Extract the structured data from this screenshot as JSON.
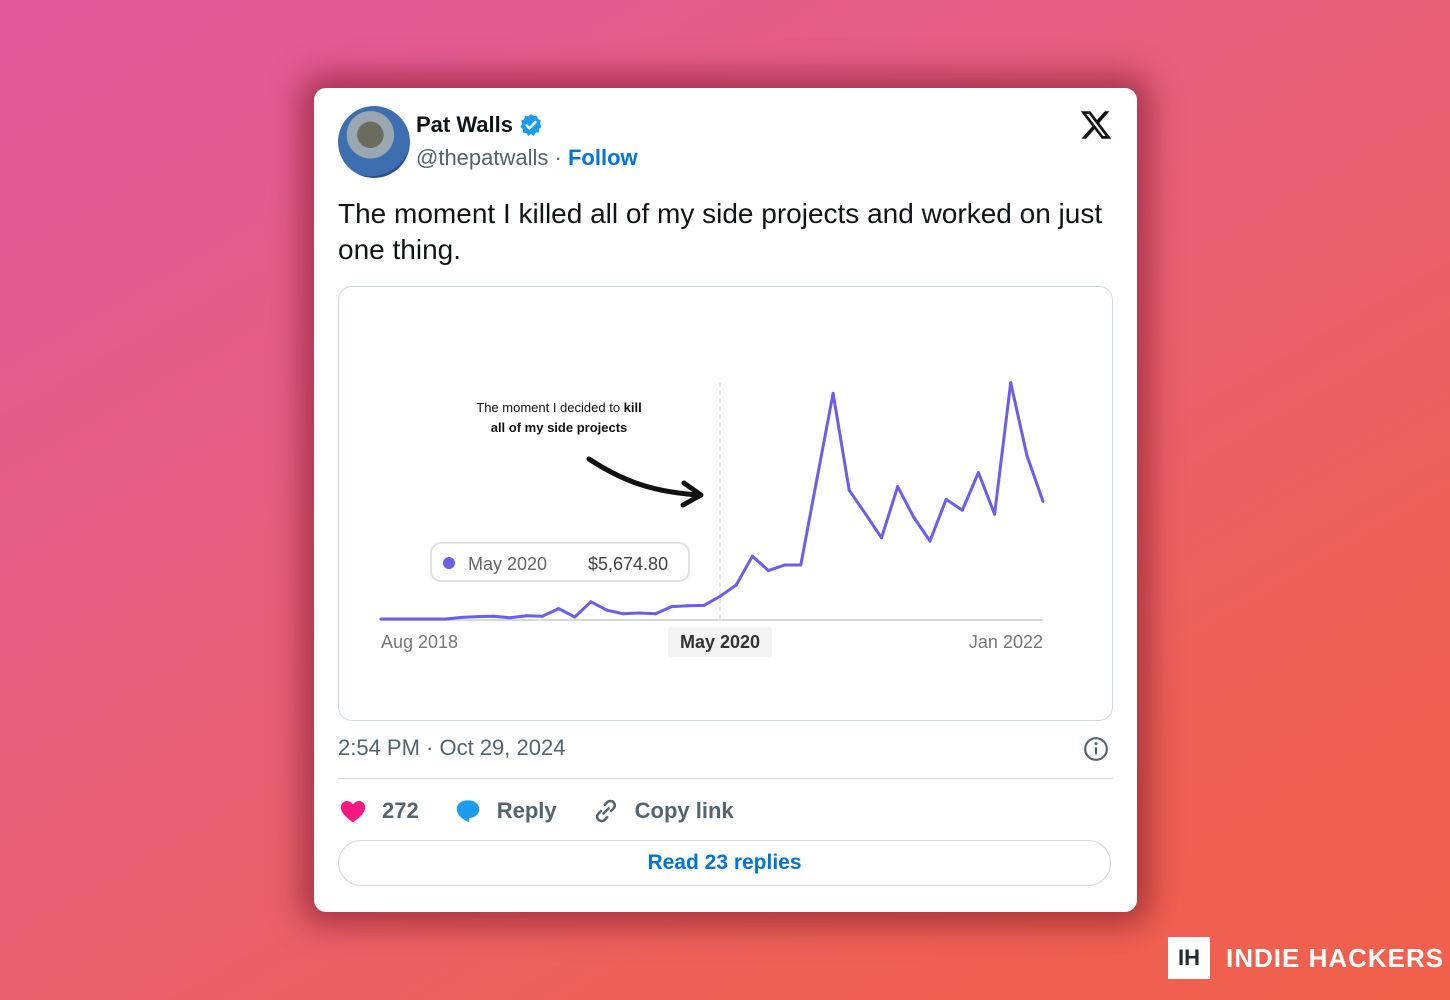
{
  "tweet": {
    "author_name": "Pat Walls",
    "handle": "@thepatwalls",
    "separator": "·",
    "follow_label": "Follow",
    "text": "The moment I killed all of my side projects and worked on just one thing.",
    "timestamp": "2:54 PM · Oct 29, 2024",
    "likes": "272",
    "reply_label": "Reply",
    "copy_link_label": "Copy link",
    "read_replies_label": "Read 23 replies"
  },
  "colors": {
    "like": "#f91880",
    "reply": "#1d9bf0",
    "link": "#0074d4",
    "series": "#6b5ee8",
    "verified": "#1d9bf0"
  },
  "icons": {
    "verified": "verified-badge-icon",
    "platform": "x-logo-icon",
    "info": "info-icon",
    "like": "heart-icon",
    "reply": "speech-bubble-icon",
    "copy": "link-icon"
  },
  "brand": {
    "box": "IH",
    "name": "INDIE HACKERS"
  },
  "chart_data": {
    "type": "line",
    "annotation_normal": "The moment I decided to ",
    "annotation_bold_1": "kill",
    "annotation_bold_2": "all of my side projects",
    "tooltip": {
      "label": "May 2020",
      "value": "$5,674.80"
    },
    "tick_labels": [
      "Aug 2018",
      "May 2020",
      "Jan 2022"
    ],
    "highlighted_tick": "May 2020",
    "ylim": [
      0,
      60000
    ],
    "grid": false,
    "x": [
      "2018-08",
      "2018-09",
      "2018-10",
      "2018-11",
      "2018-12",
      "2019-01",
      "2019-02",
      "2019-03",
      "2019-04",
      "2019-05",
      "2019-06",
      "2019-07",
      "2019-08",
      "2019-09",
      "2019-10",
      "2019-11",
      "2019-12",
      "2020-01",
      "2020-02",
      "2020-03",
      "2020-04",
      "2020-05",
      "2020-06",
      "2020-07",
      "2020-08",
      "2020-09",
      "2020-10",
      "2020-11",
      "2020-12",
      "2021-01",
      "2021-02",
      "2021-03",
      "2021-04",
      "2021-05",
      "2021-06",
      "2021-07",
      "2021-08",
      "2021-09",
      "2021-10",
      "2021-11",
      "2021-12",
      "2022-01"
    ],
    "values": [
      0,
      0,
      0,
      0,
      0,
      400,
      600,
      700,
      300,
      800,
      700,
      2600,
      500,
      4300,
      2200,
      1300,
      1500,
      1300,
      3100,
      3300,
      3400,
      5675,
      8500,
      15700,
      12100,
      13500,
      13500,
      35100,
      56400,
      32200,
      26300,
      20300,
      33100,
      25400,
      19500,
      29900,
      27200,
      36600,
      26200,
      59100,
      40900,
      29400
    ]
  }
}
